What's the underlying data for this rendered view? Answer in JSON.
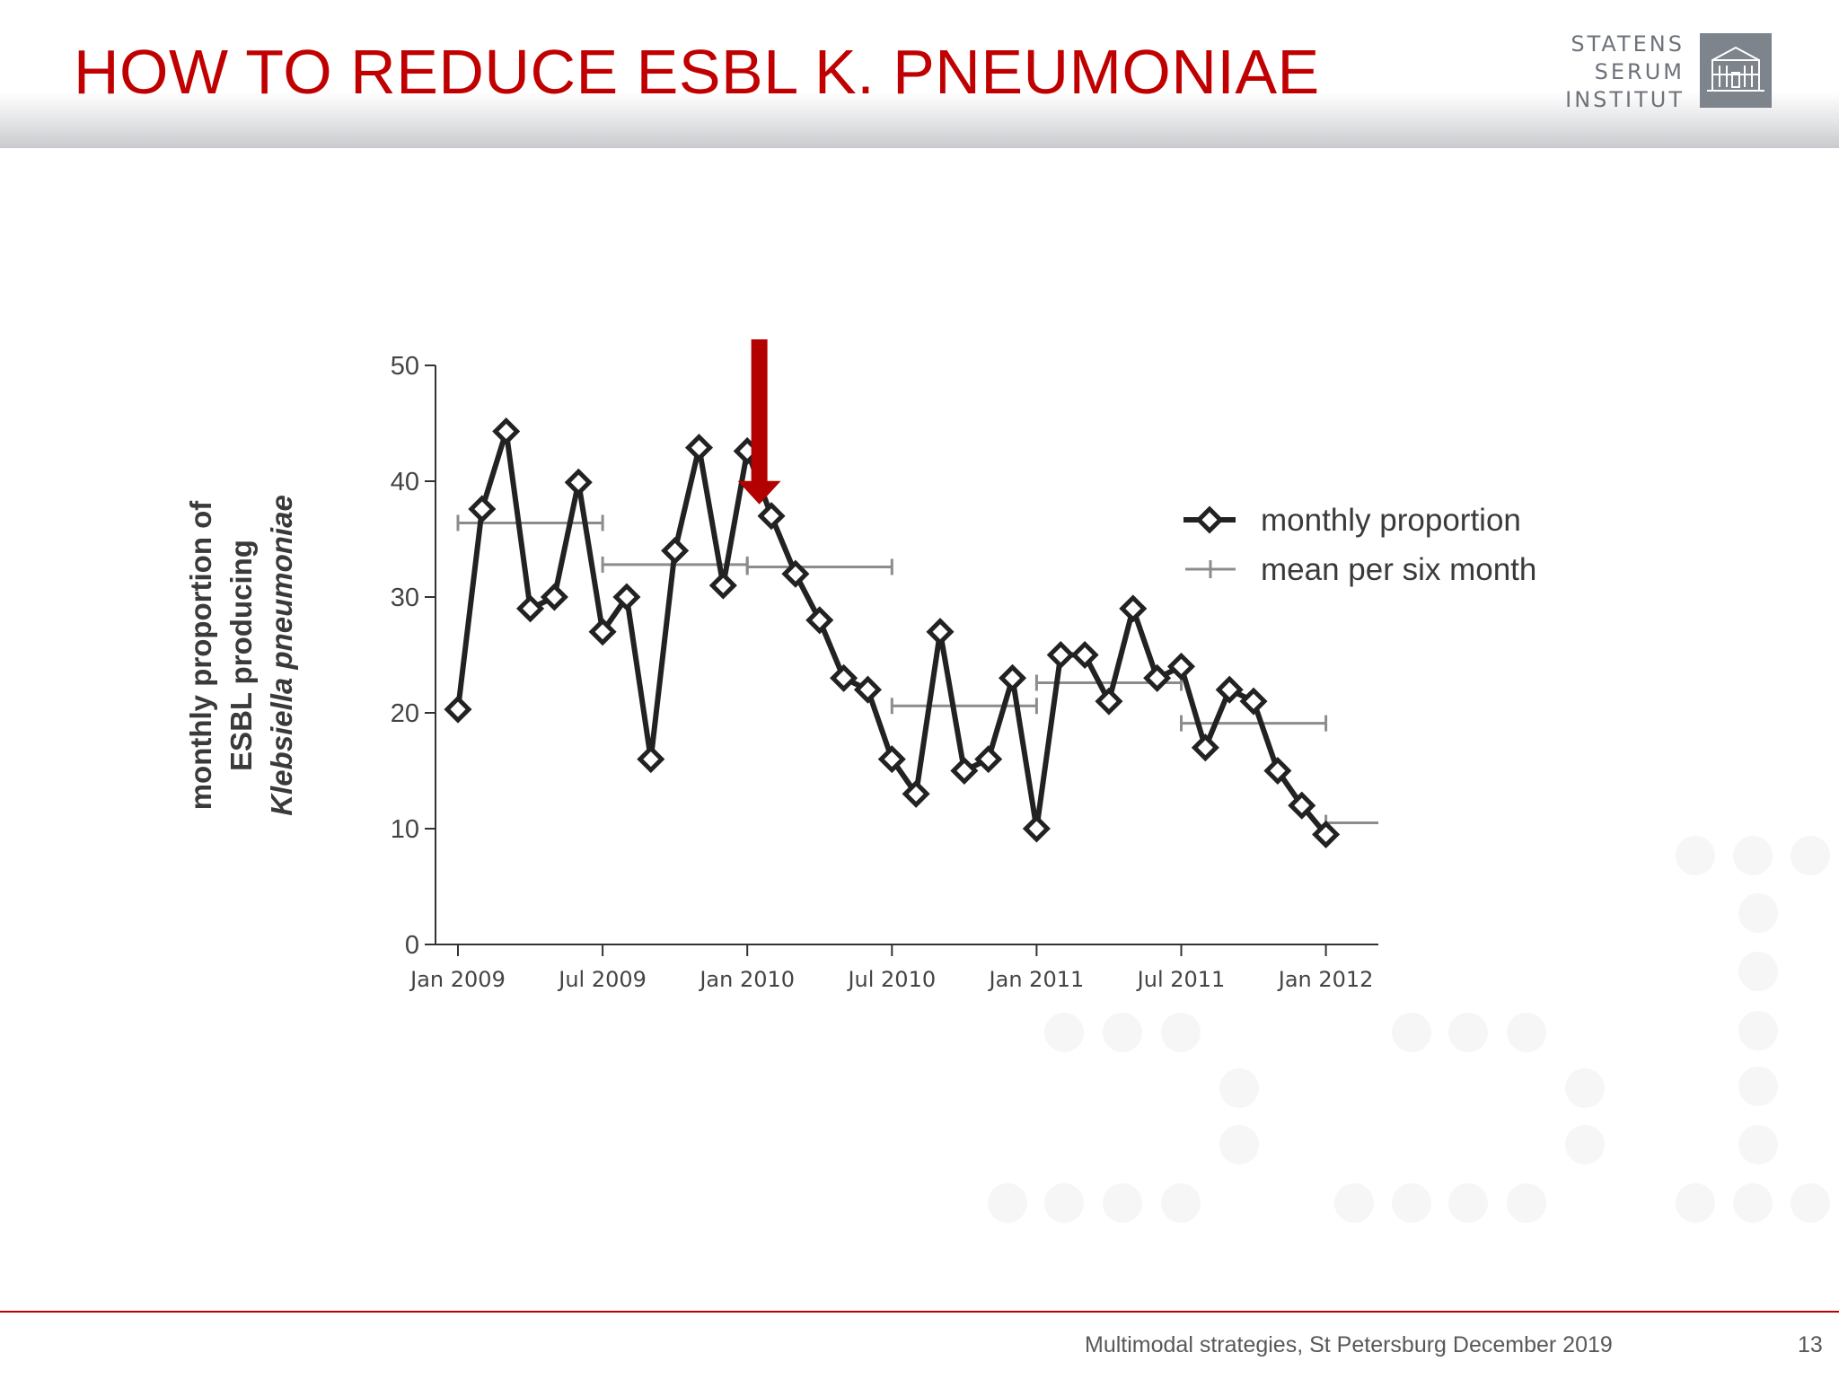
{
  "slide": {
    "title": "HOW TO REDUCE ESBL K. PNEUMONIAE",
    "logo": {
      "lines": [
        "STATENS",
        "SERUM",
        "INSTITUT"
      ],
      "icon": "building-icon"
    },
    "footer": "Multimodal strategies, St Petersburg December 2019",
    "page_number": "13"
  },
  "colors": {
    "title": "#c00000",
    "accent_red": "#b30000",
    "series_line": "#222222",
    "mean_line": "#8c8c8c",
    "axis": "#333333"
  },
  "chart_data": {
    "type": "line",
    "title": "",
    "xlabel": "",
    "ylabel": [
      "monthly proportion of",
      "ESBL producing",
      "Klebsiella pneumoniae"
    ],
    "ylim": [
      0,
      50
    ],
    "yticks": [
      0,
      10,
      20,
      30,
      40,
      50
    ],
    "x_range_months": [
      -1,
      38
    ],
    "xticks": [
      {
        "month": 0,
        "label": "Jan 2009"
      },
      {
        "month": 6,
        "label": "Jul 2009"
      },
      {
        "month": 12,
        "label": "Jan 2010"
      },
      {
        "month": 18,
        "label": "Jul 2010"
      },
      {
        "month": 24,
        "label": "Jan 2011"
      },
      {
        "month": 30,
        "label": "Jul 2011"
      },
      {
        "month": 36,
        "label": "Jan 2012"
      }
    ],
    "series": [
      {
        "name": "monthly proportion",
        "marker": "diamond",
        "values": [
          20.3,
          37.6,
          44.3,
          29,
          30,
          39.9,
          27,
          30,
          16,
          34,
          42.9,
          31,
          42.6,
          37,
          32,
          28,
          23,
          22,
          16,
          13,
          27,
          15,
          16,
          23,
          10,
          25,
          25,
          21,
          29,
          23,
          24,
          17,
          22,
          21,
          15,
          12,
          9.5
        ]
      },
      {
        "name": "mean per six month",
        "style": "range",
        "segments": [
          {
            "start": 0,
            "end": 6,
            "value": 36.4
          },
          {
            "start": 6,
            "end": 12,
            "value": 32.8
          },
          {
            "start": 12,
            "end": 18,
            "value": 32.6
          },
          {
            "start": 18,
            "end": 24,
            "value": 20.6
          },
          {
            "start": 24,
            "end": 30,
            "value": 22.6
          },
          {
            "start": 30,
            "end": 36,
            "value": 19.1
          },
          {
            "start": 36,
            "end": 38,
            "value": 10.5
          }
        ]
      }
    ],
    "annotations": [
      {
        "type": "arrow",
        "month": 12.5,
        "points_to_value": 38,
        "color": "#b30000"
      }
    ],
    "legend": {
      "position": "right",
      "entries": [
        {
          "label": "monthly proportion",
          "symbol": "diamond-line"
        },
        {
          "label": "mean per six month",
          "symbol": "cross-line"
        }
      ]
    }
  }
}
